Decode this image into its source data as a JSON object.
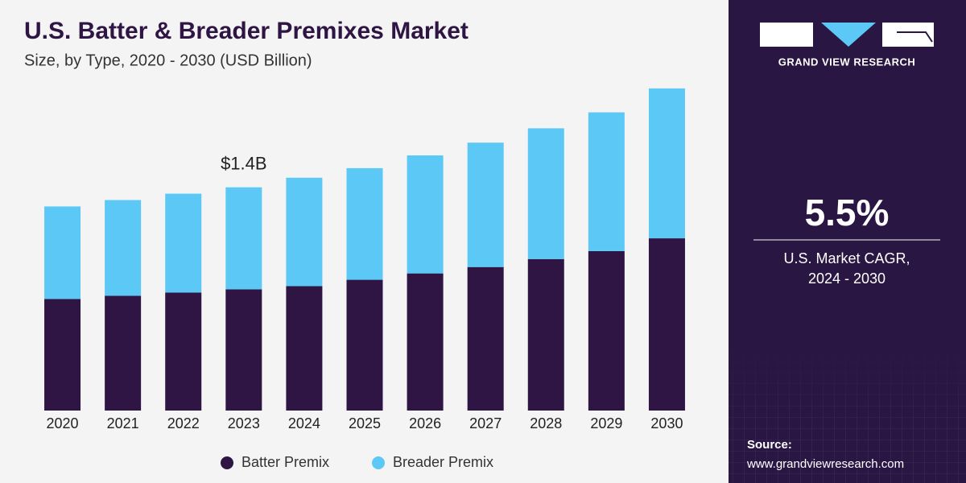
{
  "chart_data": {
    "type": "stacked_bar",
    "title": "U.S. Batter & Breader Premixes Market",
    "subtitle": "Size, by Type, 2020 - 2030 (USD Billion)",
    "categories": [
      "2020",
      "2021",
      "2022",
      "2023",
      "2024",
      "2025",
      "2026",
      "2027",
      "2028",
      "2029",
      "2030"
    ],
    "series": [
      {
        "name": "Batter Premix",
        "color": "#2e1543",
        "values": [
          0.7,
          0.72,
          0.74,
          0.76,
          0.78,
          0.82,
          0.86,
          0.9,
          0.95,
          1.0,
          1.08
        ]
      },
      {
        "name": "Breader Premix",
        "color": "#5bc8f5",
        "values": [
          0.58,
          0.6,
          0.62,
          0.64,
          0.68,
          0.7,
          0.74,
          0.78,
          0.82,
          0.87,
          0.94
        ]
      }
    ],
    "ylim": [
      0,
      2.1
    ],
    "annotation": {
      "category": "2023",
      "value": 1.4,
      "label": "$1.4B"
    }
  },
  "side_panel": {
    "brand": "GRAND VIEW RESEARCH",
    "cagr": "5.5%",
    "cagr_label": [
      "U.S. Market CAGR,",
      "2024 - 2030"
    ],
    "source_title": "Source:",
    "source_url": "www.grandviewresearch.com"
  }
}
